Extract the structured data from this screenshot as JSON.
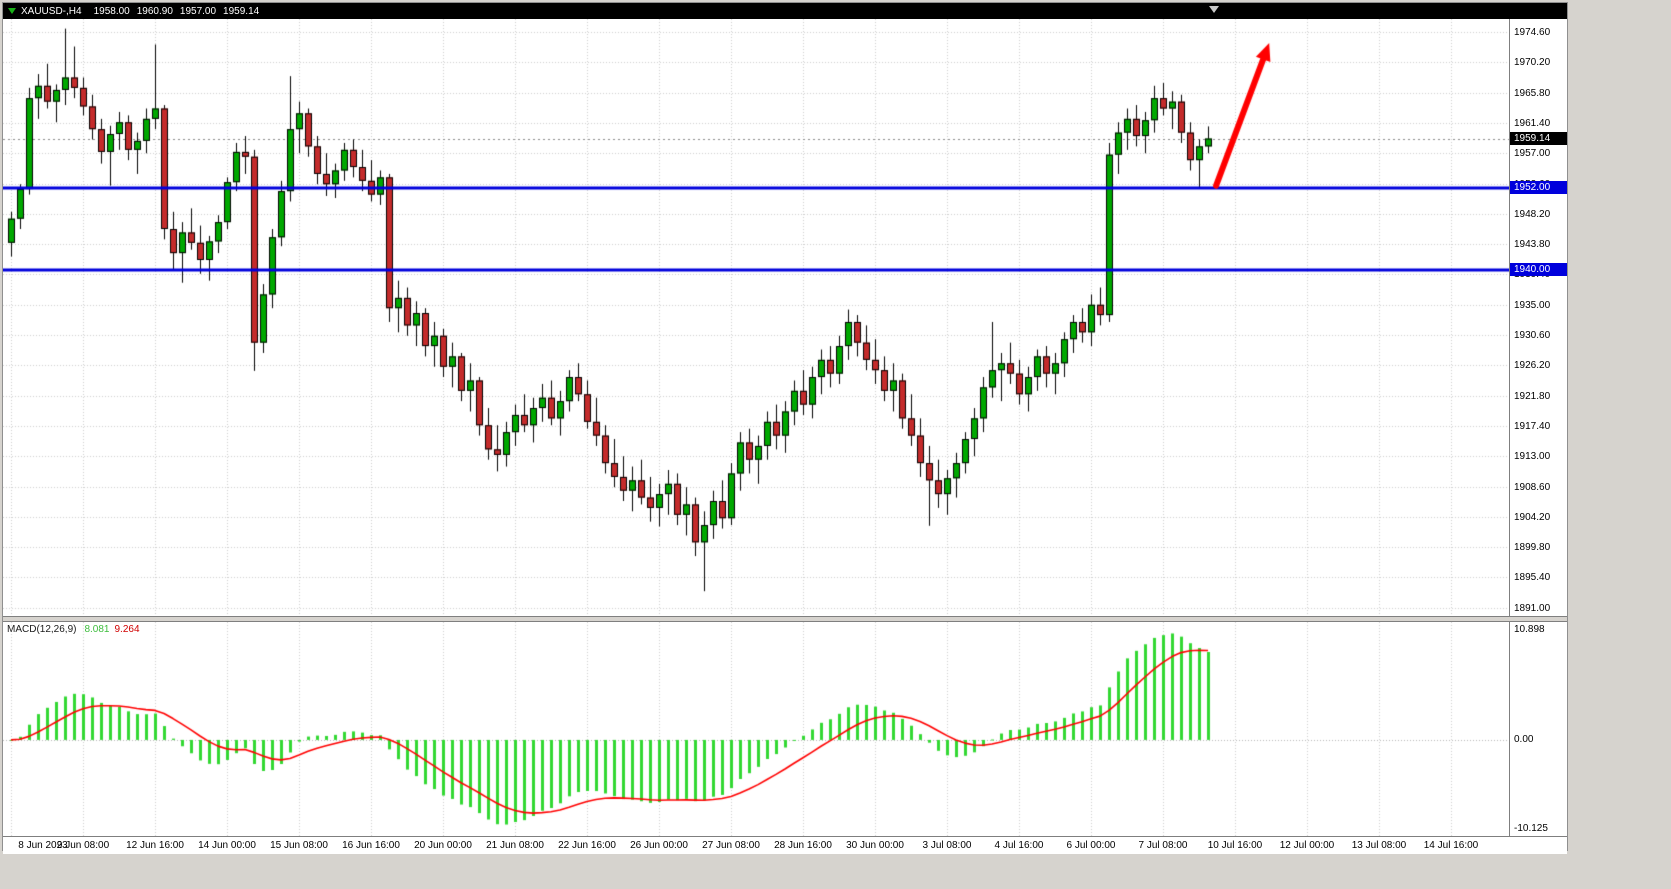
{
  "title_bar": {
    "symbol_period": "XAUUSD-,H4",
    "open": "1958.00",
    "high": "1960.90",
    "low": "1957.00",
    "close": "1959.14"
  },
  "macd": {
    "name": "MACD(12,26,9)",
    "params": [
      12,
      26,
      9
    ],
    "main_value": "8.081",
    "signal_value": "9.264",
    "axis_max": "10.898",
    "axis_zero": "0.00",
    "axis_min": "-10.125"
  },
  "price_tags": {
    "current": {
      "label": "1959.14",
      "price": 1959.14
    },
    "levels": [
      {
        "label": "1952.00",
        "price": 1952.0
      },
      {
        "label": "1940.00",
        "price": 1940.0
      }
    ]
  },
  "colors": {
    "window_bg": "#d6d3ce",
    "chart_bg": "#ffffff",
    "titlebar_bg": "#000000",
    "grid": "#cdcdcd",
    "bull": "#00a800",
    "bear": "#c42b2b",
    "candle_outline": "#000000",
    "macd_histogram": "#33d833",
    "macd_signal": "#ff0000",
    "hline_blue": "#0000dc",
    "current_price_line": "#8a8a8a",
    "tag_black_bg": "#000000",
    "tag_blue_bg": "#0000dc",
    "arrow": "#ff0000"
  },
  "chart_data": [
    {
      "type": "candlestick",
      "title": "XAUUSD- H4 candlestick chart",
      "bar_interval": "H4",
      "grid": true,
      "ylim": [
        1889.8,
        1976.5
      ],
      "y_tick_labels": [
        "1974.60",
        "1970.20",
        "1965.80",
        "1961.40",
        "1957.00",
        "1952.60",
        "1948.20",
        "1943.80",
        "1939.40",
        "1935.00",
        "1930.60",
        "1926.20",
        "1921.80",
        "1917.40",
        "1913.00",
        "1908.60",
        "1904.20",
        "1899.80",
        "1895.40",
        "1891.00"
      ],
      "x_tick_labels": [
        "8 Jun 2023",
        "9 Jun 08:00",
        "12 Jun 16:00",
        "14 Jun 00:00",
        "15 Jun 08:00",
        "16 Jun 16:00",
        "20 Jun 00:00",
        "21 Jun 08:00",
        "22 Jun 16:00",
        "26 Jun 00:00",
        "27 Jun 08:00",
        "28 Jun 16:00",
        "30 Jun 00:00",
        "3 Jul 08:00",
        "4 Jul 16:00",
        "6 Jul 00:00",
        "7 Jul 08:00",
        "10 Jul 16:00",
        "12 Jul 00:00",
        "13 Jul 08:00",
        "14 Jul 16:00"
      ],
      "x_tick_every_n_bars": 8,
      "ohlc": [
        [
          1944.0,
          1948.5,
          1942.0,
          1947.5
        ],
        [
          1947.5,
          1952.5,
          1946.0,
          1951.8
        ],
        [
          1951.8,
          1966.5,
          1951.0,
          1965.0
        ],
        [
          1965.0,
          1968.5,
          1962.0,
          1966.8
        ],
        [
          1966.8,
          1970.0,
          1963.5,
          1964.5
        ],
        [
          1964.5,
          1967.0,
          1961.5,
          1966.2
        ],
        [
          1966.2,
          1975.1,
          1964.0,
          1968.0
        ],
        [
          1968.0,
          1972.5,
          1965.0,
          1966.5
        ],
        [
          1966.5,
          1968.0,
          1962.5,
          1963.8
        ],
        [
          1963.8,
          1965.5,
          1959.0,
          1960.5
        ],
        [
          1960.5,
          1962.0,
          1955.5,
          1957.2
        ],
        [
          1957.2,
          1961.0,
          1952.3,
          1959.8
        ],
        [
          1959.8,
          1963.0,
          1957.5,
          1961.5
        ],
        [
          1961.5,
          1962.5,
          1956.0,
          1957.5
        ],
        [
          1957.5,
          1960.0,
          1954.0,
          1958.8
        ],
        [
          1958.8,
          1963.5,
          1957.0,
          1962.0
        ],
        [
          1962.0,
          1972.8,
          1960.5,
          1963.5
        ],
        [
          1963.5,
          1964.0,
          1944.5,
          1946.0
        ],
        [
          1946.0,
          1948.5,
          1940.0,
          1942.5
        ],
        [
          1942.5,
          1947.0,
          1938.2,
          1945.5
        ],
        [
          1945.5,
          1949.0,
          1943.0,
          1944.0
        ],
        [
          1944.0,
          1946.5,
          1939.5,
          1941.5
        ],
        [
          1941.5,
          1945.0,
          1938.5,
          1944.2
        ],
        [
          1944.2,
          1948.0,
          1942.5,
          1947.0
        ],
        [
          1947.0,
          1953.5,
          1946.0,
          1952.8
        ],
        [
          1952.8,
          1958.5,
          1951.5,
          1957.2
        ],
        [
          1957.2,
          1959.5,
          1954.0,
          1956.5
        ],
        [
          1956.5,
          1957.5,
          1925.4,
          1929.5
        ],
        [
          1929.5,
          1938.0,
          1928.0,
          1936.5
        ],
        [
          1936.5,
          1946.0,
          1934.5,
          1944.8
        ],
        [
          1944.8,
          1953.0,
          1943.5,
          1951.5
        ],
        [
          1951.5,
          1968.2,
          1950.0,
          1960.5
        ],
        [
          1960.5,
          1964.5,
          1957.0,
          1962.8
        ],
        [
          1962.8,
          1963.5,
          1956.5,
          1958.0
        ],
        [
          1958.0,
          1959.5,
          1952.5,
          1954.0
        ],
        [
          1954.0,
          1957.0,
          1950.8,
          1952.5
        ],
        [
          1952.5,
          1955.5,
          1950.5,
          1954.5
        ],
        [
          1954.5,
          1958.5,
          1953.0,
          1957.5
        ],
        [
          1957.5,
          1959.0,
          1953.5,
          1955.0
        ],
        [
          1955.0,
          1957.5,
          1951.5,
          1953.0
        ],
        [
          1953.0,
          1956.0,
          1950.0,
          1951.0
        ],
        [
          1951.0,
          1954.5,
          1949.5,
          1953.5
        ],
        [
          1953.5,
          1954.0,
          1932.5,
          1934.5
        ],
        [
          1934.5,
          1938.5,
          1931.0,
          1936.0
        ],
        [
          1936.0,
          1937.5,
          1930.5,
          1932.0
        ],
        [
          1932.0,
          1935.5,
          1929.0,
          1933.8
        ],
        [
          1933.8,
          1934.5,
          1927.5,
          1929.0
        ],
        [
          1929.0,
          1932.5,
          1926.0,
          1930.5
        ],
        [
          1930.5,
          1931.5,
          1924.5,
          1926.0
        ],
        [
          1926.0,
          1929.5,
          1923.0,
          1927.5
        ],
        [
          1927.5,
          1928.0,
          1921.0,
          1922.5
        ],
        [
          1922.5,
          1926.5,
          1919.5,
          1924.0
        ],
        [
          1924.0,
          1924.5,
          1916.0,
          1917.5
        ],
        [
          1917.5,
          1920.0,
          1912.5,
          1914.0
        ],
        [
          1914.0,
          1917.5,
          1910.8,
          1913.2
        ],
        [
          1913.2,
          1918.0,
          1911.5,
          1916.5
        ],
        [
          1916.5,
          1920.5,
          1914.5,
          1919.0
        ],
        [
          1919.0,
          1922.0,
          1916.5,
          1917.5
        ],
        [
          1917.5,
          1921.5,
          1915.0,
          1920.0
        ],
        [
          1920.0,
          1923.5,
          1918.0,
          1921.5
        ],
        [
          1921.5,
          1924.0,
          1917.5,
          1918.5
        ],
        [
          1918.5,
          1922.5,
          1916.0,
          1921.0
        ],
        [
          1921.0,
          1925.5,
          1919.5,
          1924.5
        ],
        [
          1924.5,
          1926.5,
          1921.0,
          1922.0
        ],
        [
          1922.0,
          1924.0,
          1917.0,
          1918.0
        ],
        [
          1918.0,
          1921.5,
          1914.5,
          1916.0
        ],
        [
          1916.0,
          1917.5,
          1910.5,
          1912.0
        ],
        [
          1912.0,
          1915.5,
          1908.5,
          1910.0
        ],
        [
          1910.0,
          1913.0,
          1906.5,
          1908.0
        ],
        [
          1908.0,
          1911.5,
          1905.0,
          1909.5
        ],
        [
          1909.5,
          1912.5,
          1906.0,
          1907.0
        ],
        [
          1907.0,
          1910.0,
          1903.5,
          1905.5
        ],
        [
          1905.5,
          1909.0,
          1902.8,
          1907.5
        ],
        [
          1907.5,
          1911.0,
          1904.5,
          1909.0
        ],
        [
          1909.0,
          1910.5,
          1903.0,
          1904.5
        ],
        [
          1904.5,
          1908.5,
          1901.5,
          1906.0
        ],
        [
          1906.0,
          1907.0,
          1898.5,
          1900.5
        ],
        [
          1900.5,
          1905.0,
          1893.4,
          1903.0
        ],
        [
          1903.0,
          1908.0,
          1901.0,
          1906.5
        ],
        [
          1906.5,
          1909.5,
          1902.5,
          1904.0
        ],
        [
          1904.0,
          1912.0,
          1903.0,
          1910.5
        ],
        [
          1910.5,
          1916.5,
          1908.0,
          1915.0
        ],
        [
          1915.0,
          1917.0,
          1910.5,
          1912.5
        ],
        [
          1912.5,
          1916.0,
          1909.0,
          1914.5
        ],
        [
          1914.5,
          1919.5,
          1912.5,
          1918.0
        ],
        [
          1918.0,
          1920.5,
          1914.0,
          1916.0
        ],
        [
          1916.0,
          1921.0,
          1913.5,
          1919.5
        ],
        [
          1919.5,
          1924.0,
          1917.5,
          1922.5
        ],
        [
          1922.5,
          1925.5,
          1919.0,
          1920.5
        ],
        [
          1920.5,
          1926.0,
          1918.5,
          1924.5
        ],
        [
          1924.5,
          1928.5,
          1922.0,
          1927.0
        ],
        [
          1927.0,
          1929.0,
          1923.0,
          1925.0
        ],
        [
          1925.0,
          1930.5,
          1923.5,
          1929.0
        ],
        [
          1929.0,
          1934.3,
          1927.0,
          1932.5
        ],
        [
          1932.5,
          1933.5,
          1927.5,
          1929.5
        ],
        [
          1929.5,
          1932.0,
          1925.5,
          1927.0
        ],
        [
          1927.0,
          1930.0,
          1923.5,
          1925.5
        ],
        [
          1925.5,
          1927.5,
          1921.0,
          1922.5
        ],
        [
          1922.5,
          1926.5,
          1919.5,
          1924.0
        ],
        [
          1924.0,
          1925.0,
          1917.0,
          1918.5
        ],
        [
          1918.5,
          1922.0,
          1914.5,
          1916.0
        ],
        [
          1916.0,
          1918.5,
          1910.0,
          1912.0
        ],
        [
          1912.0,
          1914.5,
          1902.9,
          1909.5
        ],
        [
          1909.5,
          1912.5,
          1905.5,
          1907.5
        ],
        [
          1907.5,
          1911.0,
          1904.5,
          1909.8
        ],
        [
          1909.8,
          1913.5,
          1907.0,
          1912.0
        ],
        [
          1912.0,
          1916.5,
          1910.5,
          1915.5
        ],
        [
          1915.5,
          1920.0,
          1913.0,
          1918.5
        ],
        [
          1918.5,
          1924.5,
          1916.5,
          1923.0
        ],
        [
          1923.0,
          1932.5,
          1921.5,
          1925.5
        ],
        [
          1925.5,
          1928.0,
          1921.0,
          1926.5
        ],
        [
          1926.5,
          1929.5,
          1923.5,
          1925.0
        ],
        [
          1925.0,
          1927.0,
          1920.5,
          1922.0
        ],
        [
          1922.0,
          1926.0,
          1919.5,
          1924.5
        ],
        [
          1924.5,
          1928.5,
          1922.5,
          1927.5
        ],
        [
          1927.5,
          1929.0,
          1923.0,
          1925.0
        ],
        [
          1925.0,
          1928.0,
          1922.0,
          1926.5
        ],
        [
          1926.5,
          1931.0,
          1924.5,
          1930.0
        ],
        [
          1930.0,
          1933.5,
          1928.0,
          1932.5
        ],
        [
          1932.5,
          1934.5,
          1929.5,
          1931.0
        ],
        [
          1931.0,
          1936.5,
          1929.0,
          1935.0
        ],
        [
          1935.0,
          1937.5,
          1932.0,
          1933.5
        ],
        [
          1933.5,
          1958.5,
          1932.5,
          1956.8
        ],
        [
          1956.8,
          1961.5,
          1954.0,
          1960.0
        ],
        [
          1960.0,
          1963.5,
          1957.5,
          1962.0
        ],
        [
          1962.0,
          1964.0,
          1958.0,
          1959.5
        ],
        [
          1959.5,
          1963.0,
          1957.0,
          1961.8
        ],
        [
          1961.8,
          1966.8,
          1960.0,
          1965.0
        ],
        [
          1965.0,
          1967.2,
          1962.5,
          1963.5
        ],
        [
          1963.5,
          1966.0,
          1960.5,
          1964.5
        ],
        [
          1964.5,
          1965.5,
          1958.5,
          1960.0
        ],
        [
          1960.0,
          1961.5,
          1954.5,
          1956.0
        ],
        [
          1956.0,
          1959.0,
          1951.9,
          1958.0
        ],
        [
          1958.0,
          1960.9,
          1957.0,
          1959.14
        ]
      ],
      "overlays": {
        "hlines": [
          {
            "price": 1952.0,
            "label": "1952.00"
          },
          {
            "price": 1940.0,
            "label": "1940.00"
          }
        ],
        "current_price": 1959.14,
        "arrow": {
          "from_bar": 133.9,
          "from_price": 1952.3,
          "to_bar": 139.8,
          "to_price": 1973.0
        }
      }
    },
    {
      "type": "bar",
      "name": "MACD(12,26,9)",
      "description": "MACD histogram (lime bars) with red signal line, plotted under the same bars as the price chart; histogram = EMA(12)-EMA(26) of closes, signal = EMA(9) of histogram",
      "current": {
        "histogram": 8.081,
        "signal": 9.264
      },
      "axis_labels": {
        "max": 10.898,
        "zero": 0.0,
        "min": -10.125
      },
      "legend_position": "top-left"
    }
  ]
}
